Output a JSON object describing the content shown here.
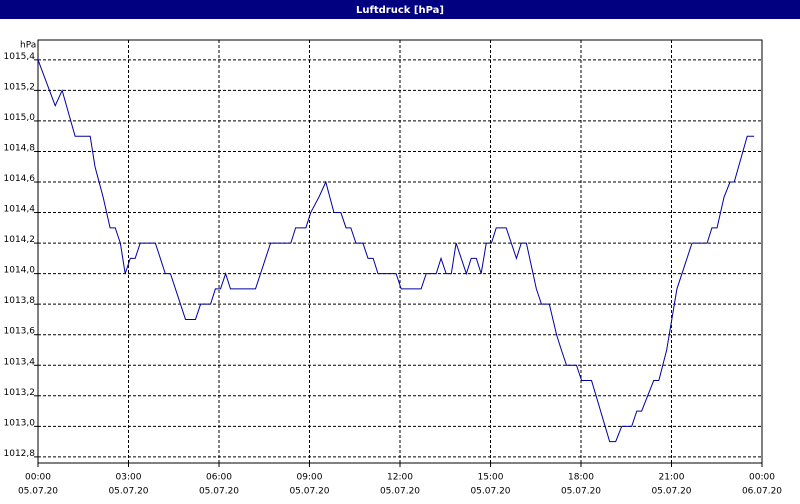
{
  "chart_data": {
    "type": "line",
    "title": "Luftdruck [hPa]",
    "y_label": "hPa",
    "x": [
      0,
      0.57,
      0.8,
      1.23,
      1.73,
      1.89,
      2.16,
      2.39,
      2.56,
      2.73,
      2.89,
      3.06,
      3.22,
      3.39,
      3.89,
      4.22,
      4.39,
      4.89,
      5.22,
      5.39,
      5.72,
      5.88,
      6.05,
      6.22,
      6.38,
      7.21,
      7.71,
      8.38,
      8.54,
      8.88,
      9.04,
      9.31,
      9.54,
      9.81,
      10.04,
      10.21,
      10.37,
      10.54,
      10.77,
      10.94,
      11.11,
      11.27,
      11.87,
      12.04,
      12.7,
      12.87,
      13.2,
      13.36,
      13.53,
      13.7,
      13.86,
      14.2,
      14.36,
      14.53,
      14.69,
      14.86,
      15.03,
      15.19,
      15.52,
      15.86,
      16.02,
      16.19,
      16.52,
      16.69,
      16.95,
      17.19,
      17.35,
      17.52,
      17.85,
      18.02,
      18.35,
      18.95,
      19.15,
      19.35,
      19.68,
      19.85,
      20.01,
      20.41,
      20.58,
      20.84,
      21.01,
      21.18,
      21.68,
      22.18,
      22.34,
      22.51,
      22.74,
      22.94,
      23.08,
      23.51,
      23.74
    ],
    "series": [
      {
        "name": "Luftdruck",
        "color": "#0000a0",
        "values": [
          1015.4,
          1015.1,
          1015.2,
          1014.9,
          1014.9,
          1014.7,
          1014.5,
          1014.3,
          1014.3,
          1014.2,
          1014.0,
          1014.1,
          1014.1,
          1014.2,
          1014.2,
          1014.0,
          1014.0,
          1013.7,
          1013.7,
          1013.8,
          1013.8,
          1013.9,
          1013.9,
          1014.0,
          1013.9,
          1013.9,
          1014.2,
          1014.2,
          1014.3,
          1014.3,
          1014.4,
          1014.5,
          1014.6,
          1014.4,
          1014.4,
          1014.3,
          1014.3,
          1014.2,
          1014.2,
          1014.1,
          1014.1,
          1014.0,
          1014.0,
          1013.9,
          1013.9,
          1014.0,
          1014.0,
          1014.1,
          1014.0,
          1014.0,
          1014.2,
          1014.0,
          1014.1,
          1014.1,
          1014.0,
          1014.2,
          1014.2,
          1014.3,
          1014.3,
          1014.1,
          1014.2,
          1014.2,
          1013.9,
          1013.8,
          1013.8,
          1013.6,
          1013.5,
          1013.4,
          1013.4,
          1013.3,
          1013.3,
          1012.9,
          1012.9,
          1013.0,
          1013.0,
          1013.1,
          1013.1,
          1013.3,
          1013.3,
          1013.5,
          1013.7,
          1013.9,
          1014.2,
          1014.2,
          1014.3,
          1014.3,
          1014.5,
          1014.6,
          1014.6,
          1014.9,
          1014.9
        ]
      }
    ],
    "xlim": [
      0,
      24
    ],
    "ylim": [
      1012.76,
      1015.53
    ],
    "xticks": [
      {
        "value": 0,
        "label": "00:00"
      },
      {
        "value": 3,
        "label": "03:00"
      },
      {
        "value": 6,
        "label": "06:00"
      },
      {
        "value": 9,
        "label": "09:00"
      },
      {
        "value": 12,
        "label": "12:00"
      },
      {
        "value": 15,
        "label": "15:00"
      },
      {
        "value": 18,
        "label": "18:00"
      },
      {
        "value": 21,
        "label": "21:00"
      },
      {
        "value": 24,
        "label": "00:00"
      }
    ],
    "xtick_dates": [
      "05.07.20",
      "05.07.20",
      "05.07.20",
      "05.07.20",
      "05.07.20",
      "05.07.20",
      "05.07.20",
      "05.07.20",
      "06.07.20"
    ],
    "yticks": [
      {
        "value": 1012.8,
        "label": "1012,8"
      },
      {
        "value": 1013.0,
        "label": "1013,0"
      },
      {
        "value": 1013.2,
        "label": "1013,2"
      },
      {
        "value": 1013.4,
        "label": "1013,4"
      },
      {
        "value": 1013.6,
        "label": "1013,6"
      },
      {
        "value": 1013.8,
        "label": "1013,8"
      },
      {
        "value": 1014.0,
        "label": "1014,0"
      },
      {
        "value": 1014.2,
        "label": "1014,2"
      },
      {
        "value": 1014.4,
        "label": "1014,4"
      },
      {
        "value": 1014.6,
        "label": "1014,6"
      },
      {
        "value": 1014.8,
        "label": "1014,8"
      },
      {
        "value": 1015.0,
        "label": "1015,0"
      },
      {
        "value": 1015.2,
        "label": "1015,2"
      },
      {
        "value": 1015.4,
        "label": "1015,4"
      }
    ],
    "grid": true
  }
}
